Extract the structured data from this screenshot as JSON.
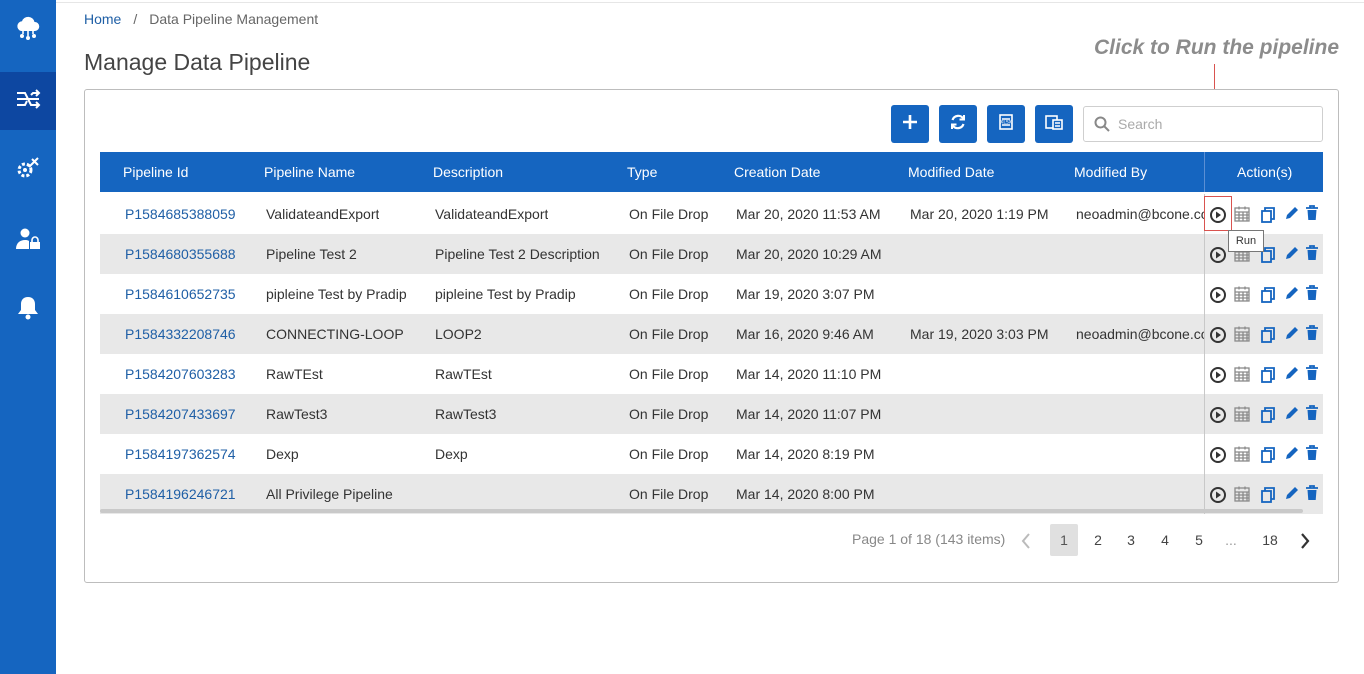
{
  "breadcrumb": {
    "home": "Home",
    "separator": "/",
    "current": "Data Pipeline Management"
  },
  "page_title": "Manage Data Pipeline",
  "annotation": "Click to Run the pipeline",
  "sidebar": {
    "items": [
      {
        "icon": "cloud-network-icon"
      },
      {
        "icon": "pipeline-icon",
        "active": true
      },
      {
        "icon": "settings-tools-icon"
      },
      {
        "icon": "user-lock-icon"
      },
      {
        "icon": "bell-icon"
      }
    ]
  },
  "toolbar": {
    "buttons": [
      {
        "icon": "add-icon"
      },
      {
        "icon": "refresh-icon"
      },
      {
        "icon": "export-xlsx-icon"
      },
      {
        "icon": "import-icon"
      }
    ],
    "search_placeholder": "Search",
    "search_value": ""
  },
  "table": {
    "columns": [
      "Pipeline Id",
      "Pipeline Name",
      "Description",
      "Type",
      "Creation Date",
      "Modified Date",
      "Modified By",
      "Action(s)"
    ],
    "rows": [
      {
        "id": "P1584685388059",
        "name": "ValidateandExport",
        "description": "ValidateandExport",
        "type": "On File Drop",
        "created": "Mar 20, 2020 11:53 AM",
        "modified": "Mar 20, 2020 1:19 PM",
        "modified_by": "neoadmin@bcone.co"
      },
      {
        "id": "P1584680355688",
        "name": "Pipeline Test 2",
        "description": "Pipeline Test 2 Description",
        "type": "On File Drop",
        "created": "Mar 20, 2020 10:29 AM",
        "modified": "",
        "modified_by": ""
      },
      {
        "id": "P1584610652735",
        "name": "pipleine Test by Pradip",
        "description": "pipleine Test by Pradip",
        "type": "On File Drop",
        "created": "Mar 19, 2020 3:07 PM",
        "modified": "",
        "modified_by": ""
      },
      {
        "id": "P1584332208746",
        "name": "CONNECTING-LOOP",
        "description": "LOOP2",
        "type": "On File Drop",
        "created": "Mar 16, 2020 9:46 AM",
        "modified": "Mar 19, 2020 3:03 PM",
        "modified_by": "neoadmin@bcone.co"
      },
      {
        "id": "P1584207603283",
        "name": "RawTEst",
        "description": "RawTEst",
        "type": "On File Drop",
        "created": "Mar 14, 2020 11:10 PM",
        "modified": "",
        "modified_by": ""
      },
      {
        "id": "P1584207433697",
        "name": "RawTest3",
        "description": "RawTest3",
        "type": "On File Drop",
        "created": "Mar 14, 2020 11:07 PM",
        "modified": "",
        "modified_by": ""
      },
      {
        "id": "P1584197362574",
        "name": "Dexp",
        "description": "Dexp",
        "type": "On File Drop",
        "created": "Mar 14, 2020 8:19 PM",
        "modified": "",
        "modified_by": ""
      },
      {
        "id": "P1584196246721",
        "name": "All Privilege Pipeline",
        "description": "",
        "type": "On File Drop",
        "created": "Mar 14, 2020 8:00 PM",
        "modified": "",
        "modified_by": ""
      }
    ],
    "row_actions": [
      "run-icon",
      "schedule-icon",
      "copy-icon",
      "edit-icon",
      "delete-icon"
    ]
  },
  "tooltip": "Run",
  "pagination": {
    "info": "Page 1 of 18 (143 items)",
    "pages": [
      "1",
      "2",
      "3",
      "4",
      "5",
      "...",
      "18"
    ],
    "current": "1"
  },
  "colors": {
    "primary": "#1565c0",
    "sidebar_active": "#0d47a1",
    "link": "#1f5fa6",
    "annotation_line": "#d9534f",
    "row_alt": "#e8e8e8"
  }
}
